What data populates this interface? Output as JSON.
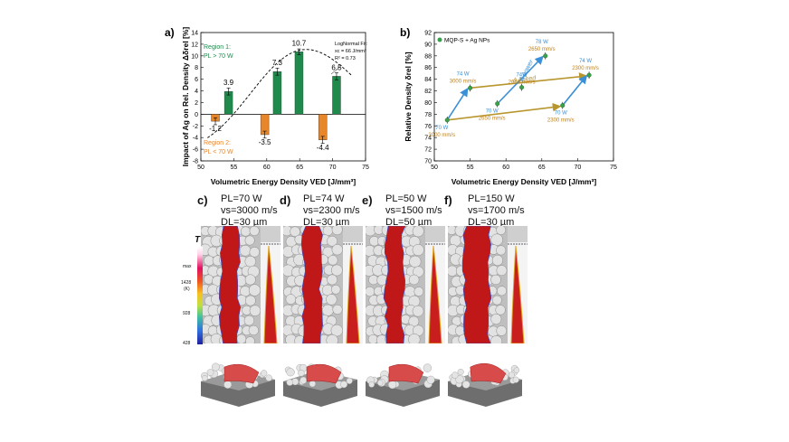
{
  "figure": {
    "panel_labels": [
      "a)",
      "b)",
      "c)",
      "d)",
      "e)",
      "f)"
    ]
  },
  "chart_data": [
    {
      "type": "bar",
      "panel": "a)",
      "xlabel": "Volumetric Energy Density VED [J/mm³]",
      "ylabel": "Impact of Ag on Rel. Density Δδrel [%]",
      "xlim": [
        50,
        75
      ],
      "ylim": [
        -8,
        14
      ],
      "xticks": [
        50,
        55,
        60,
        65,
        70,
        75
      ],
      "yticks": [
        -8,
        -6,
        -4,
        -2,
        0,
        2,
        4,
        6,
        8,
        10,
        12,
        14
      ],
      "bars": [
        {
          "x": 52.2,
          "value": -1.2,
          "label": "-1.2",
          "color": "#e8862a",
          "err": 0.6
        },
        {
          "x": 54.2,
          "value": 3.9,
          "label": "3.9",
          "color": "#1f8a4c",
          "err": 0.6
        },
        {
          "x": 59.7,
          "value": -3.5,
          "label": "-3.5",
          "color": "#e8862a",
          "err": 0.6
        },
        {
          "x": 61.6,
          "value": 7.3,
          "label": "7.3",
          "color": "#1f8a4c",
          "err": 0.6
        },
        {
          "x": 64.9,
          "value": 10.7,
          "label": "10.7",
          "color": "#1f8a4c",
          "err": 0.5
        },
        {
          "x": 68.5,
          "value": -4.4,
          "label": "-4.4",
          "color": "#e8862a",
          "err": 0.6
        },
        {
          "x": 70.6,
          "value": 6.5,
          "label": "6.5",
          "color": "#1f8a4c",
          "err": 0.6
        }
      ],
      "fit": {
        "type": "lognormal",
        "peak_x": 66,
        "peak_y": 11.1,
        "annotation": [
          "LogNormal Fit:",
          "xc = 66 J/mm³",
          "R² = 0.73"
        ]
      },
      "regions": [
        {
          "lines": [
            "Region 1:",
            "PL > 70 W"
          ],
          "color": "#1f8a4c"
        },
        {
          "lines": [
            "Region 2:",
            "PL < 70 W"
          ],
          "color": "#e8862a"
        }
      ]
    },
    {
      "type": "scatter",
      "panel": "b)",
      "xlabel": "Volumetric Energy Density VED [J/mm³]",
      "ylabel": "Relative Density δrel [%]",
      "xlim": [
        50,
        75
      ],
      "ylim": [
        70,
        92
      ],
      "xticks": [
        50,
        55,
        60,
        65,
        70,
        75
      ],
      "yticks": [
        70,
        72,
        74,
        76,
        78,
        80,
        82,
        84,
        86,
        88,
        90,
        92
      ],
      "legend": "MQP-S + Ag NPs",
      "points": [
        {
          "x": 51.8,
          "y": 77.0
        },
        {
          "x": 55.0,
          "y": 82.5
        },
        {
          "x": 58.8,
          "y": 79.8
        },
        {
          "x": 62.2,
          "y": 82.6
        },
        {
          "x": 65.5,
          "y": 88.0
        },
        {
          "x": 67.9,
          "y": 79.5
        },
        {
          "x": 71.6,
          "y": 84.7
        }
      ],
      "point_labels": [
        {
          "lines": [
            "70 W",
            "3000 mm/s"
          ],
          "power": "70 W",
          "speed": "3000 mm/s"
        },
        {
          "lines": [
            "74 W",
            "3000 mm/s"
          ],
          "power": "74 W",
          "speed": "3000 mm/s"
        },
        {
          "lines": [
            "70 W",
            "2650 mm/s"
          ],
          "power": "70 W",
          "speed": "2650 mm/s"
        },
        {
          "lines": [
            "74W",
            "2650 mm/s"
          ],
          "power": "74W",
          "speed": "2650 mm/s"
        },
        {
          "lines": [
            "78 W",
            "2650 mm/s"
          ],
          "power": "78 W",
          "speed": "2650 mm/s"
        },
        {
          "lines": [
            "70 W",
            "2300 mm/s"
          ],
          "power": "70 W",
          "speed": "2300 mm/s"
        },
        {
          "lines": [
            "74 W",
            "2300 mm/s"
          ],
          "power": "74 W",
          "speed": "2300 mm/s"
        }
      ],
      "arrows": [
        {
          "label": "Δ power",
          "color": "#3a8fd6"
        },
        {
          "label": "Δ speed",
          "color": "#b8962e"
        }
      ]
    }
  ],
  "simulations": [
    {
      "label": "c)",
      "PL": "PL=70 W",
      "vs": "vs=3000 m/s",
      "DL": "DL=30 µm"
    },
    {
      "label": "d)",
      "PL": "PL=74 W",
      "vs": "vs=2300 m/s",
      "DL": "DL=30 µm"
    },
    {
      "label": "e)",
      "PL": "PL=50 W",
      "vs": "vs=1500 m/s",
      "DL": "DL=50 µm"
    },
    {
      "label": "f)",
      "PL": "PL=150 W",
      "vs": "vs=1700 m/s",
      "DL": "DL=30 µm"
    }
  ],
  "colorbar": {
    "title": "T",
    "unit": "(K)",
    "ticks": [
      "max",
      "1428",
      "928",
      "428"
    ]
  }
}
